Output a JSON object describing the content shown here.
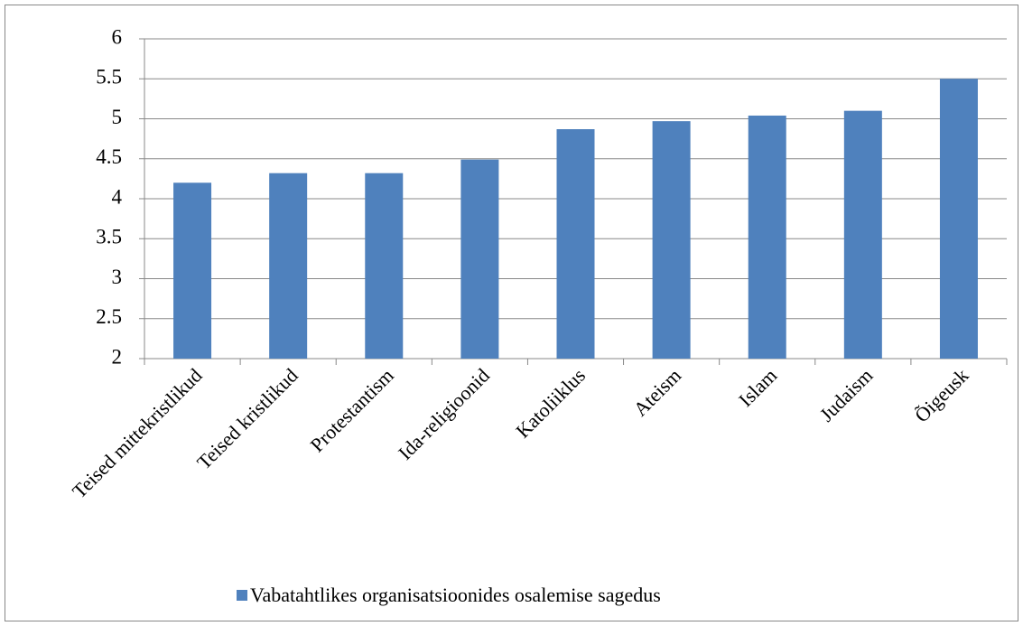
{
  "chart_data": {
    "type": "bar",
    "categories": [
      "Teised mittekristlikud",
      "Teised kristlikud",
      "Protestantism",
      "Ida-religioonid",
      "Katoliiklus",
      "Ateism",
      "Islam",
      "Judaism",
      "Õigeusk"
    ],
    "series": [
      {
        "name": "Vabatahtlikes organisatsioonides osalemise sagedus",
        "color": "#4f81bd",
        "values": [
          4.2,
          4.32,
          4.32,
          4.49,
          4.87,
          4.97,
          5.04,
          5.1,
          5.5
        ]
      }
    ],
    "ylim": [
      2,
      6
    ],
    "yticks": [
      2,
      2.5,
      3,
      3.5,
      4,
      4.5,
      5,
      5.5,
      6
    ],
    "grid": true,
    "legend": "bottom"
  }
}
